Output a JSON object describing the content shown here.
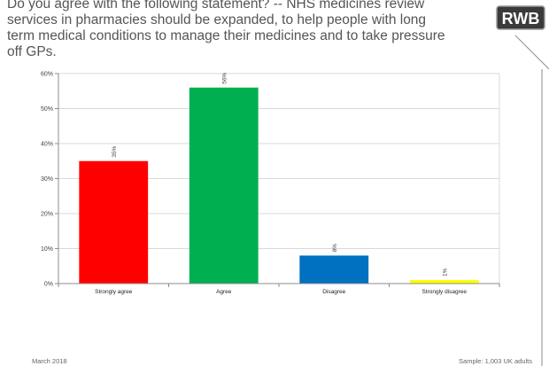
{
  "header": {
    "title": "Do you agree with the following statement? -- NHS medicines review services in pharmacies should be expanded, to help people with long term medical conditions to manage their medicines and to take pressure off GPs.",
    "logo_text": "RWB"
  },
  "footer": {
    "date": "March 2018",
    "sample": "Sample: 1,003 UK adults"
  },
  "chart_data": {
    "type": "bar",
    "categories": [
      "Strongly agree",
      "Agree",
      "Disagree",
      "Strongly disagree"
    ],
    "values": [
      35,
      56,
      8,
      1
    ],
    "data_labels": [
      "35%",
      "56%",
      "8%",
      "1%"
    ],
    "colors": [
      "#ff0000",
      "#00b050",
      "#0070c0",
      "#ffff00"
    ],
    "ylim": [
      0,
      60
    ],
    "yticks": [
      "0%",
      "10%",
      "20%",
      "30%",
      "40%",
      "50%",
      "60%"
    ],
    "grid": true,
    "legend": "none"
  }
}
